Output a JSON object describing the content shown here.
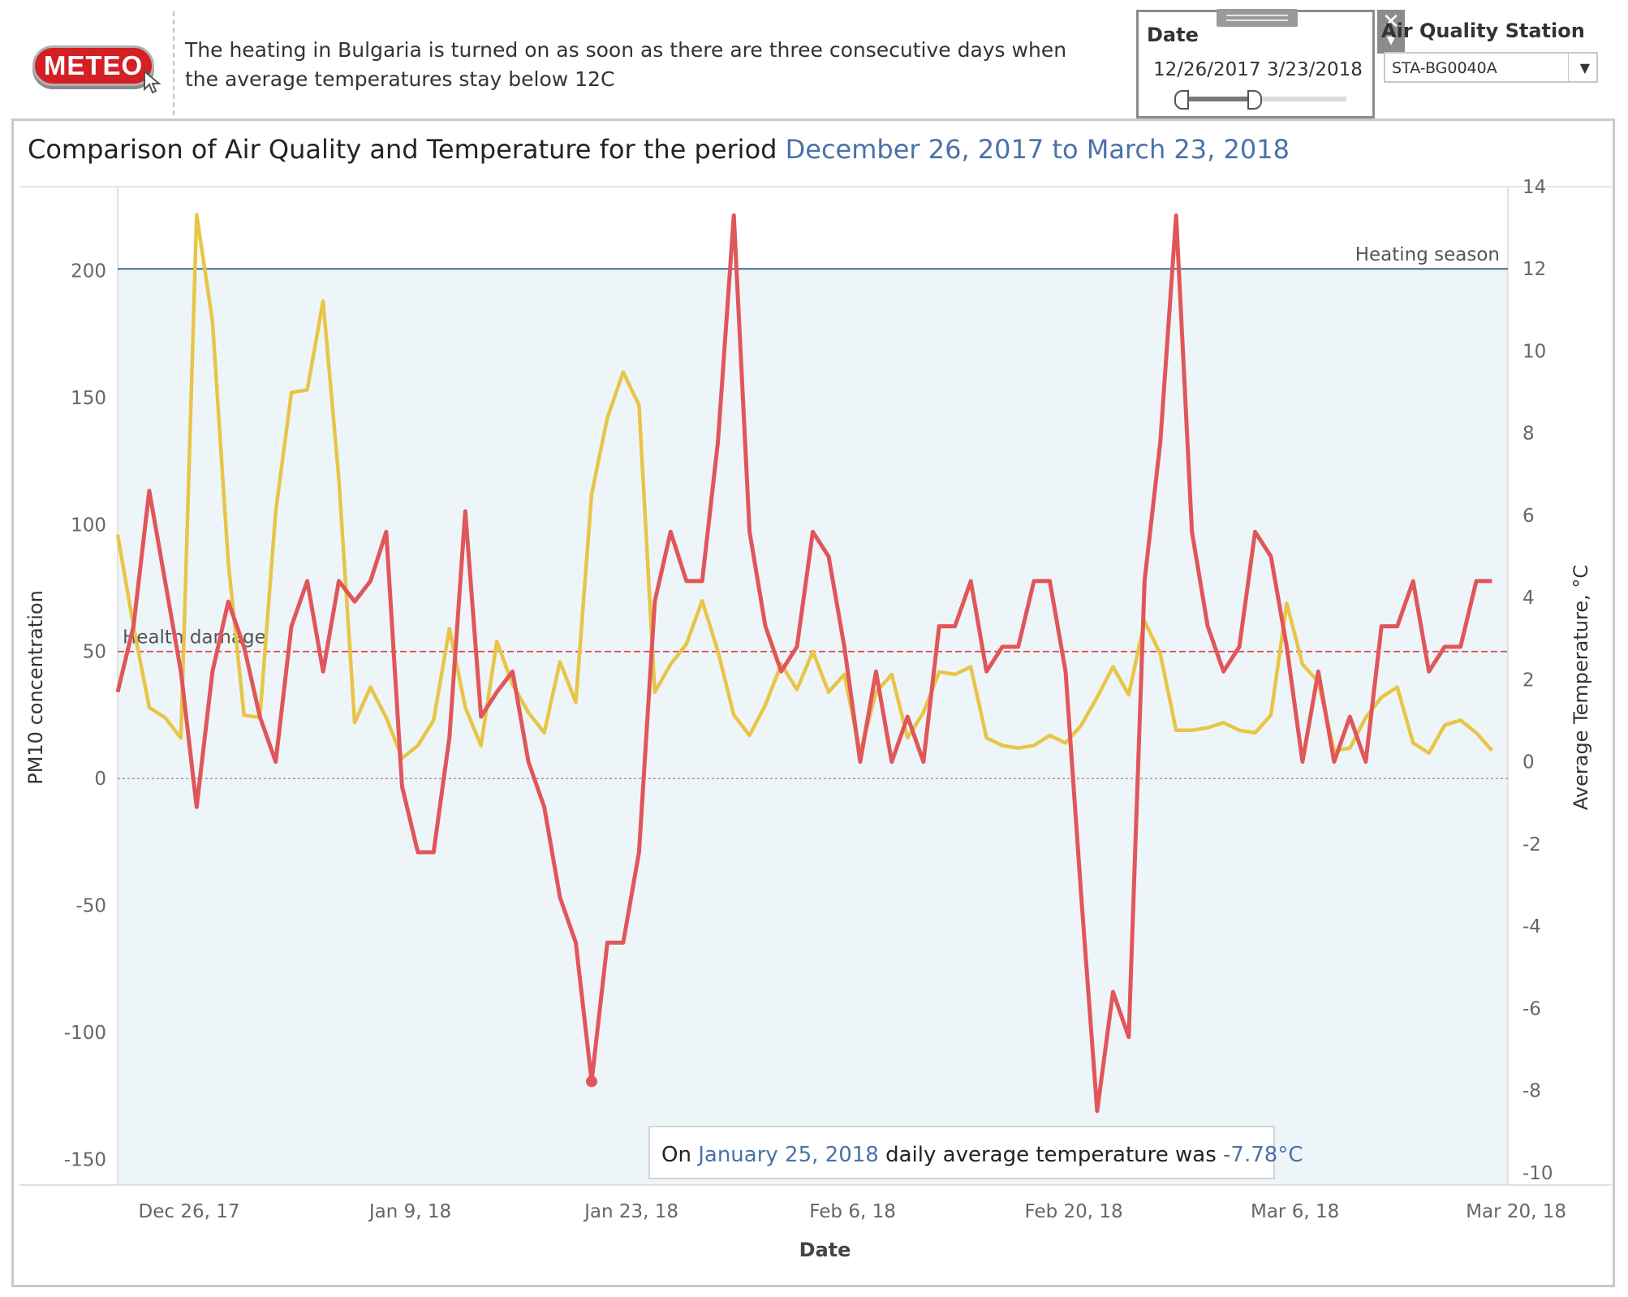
{
  "header": {
    "logo_text": "METEO",
    "intro_text": "The heating in Bulgaria is turned on as soon as there are three consecutive days when the average temperatures stay below 12C"
  },
  "date_filter": {
    "title": "Date",
    "start": "12/26/2017",
    "end": "3/23/2018"
  },
  "station_filter": {
    "title": "Air Quality Station",
    "value": "STA-BG0040A"
  },
  "chart_title": {
    "prefix": "Comparison of Air Quality and Temperature for the period ",
    "period": "December 26, 2017 to March 23, 2018"
  },
  "tooltip": {
    "prefix": "On ",
    "date": "January 25, 2018",
    "middle": " daily average temperature was ",
    "value": "-7.78°C"
  },
  "colors": {
    "pm10": "#e8c547",
    "temperature": "#e05659",
    "plot_background": "#eef5f9",
    "heating_line": "#3e6b86",
    "health_line": "#d94b4b",
    "accent_text": "#4a72a8"
  },
  "chart_data": {
    "type": "line",
    "xlabel": "Date",
    "ylabel_left": "PM10 concentration",
    "ylabel_right": "Average Temperature, °C",
    "x_ticks": [
      "Dec 26, 17",
      "Jan 9, 18",
      "Jan 23, 18",
      "Feb 6, 18",
      "Feb 20, 18",
      "Mar 6, 18",
      "Mar 20, 18"
    ],
    "y_left_ticks": [
      "200",
      "150",
      "100",
      "50",
      "0",
      "-50",
      "-100",
      "-150"
    ],
    "y_right_ticks": [
      "14",
      "12",
      "10",
      "8",
      "6",
      "4",
      "2",
      "0",
      "-2",
      "-4",
      "-6",
      "-8",
      "-10"
    ],
    "ylim_left": [
      -160,
      233
    ],
    "ylim_right": [
      -10.3,
      14.0
    ],
    "x_start": "2017-12-26",
    "x_end": "2018-03-24",
    "reference_lines": [
      {
        "label": "Heating season",
        "axis": "right",
        "value": 12
      },
      {
        "label": "Health damage",
        "axis": "left",
        "value": 50
      }
    ],
    "series": [
      {
        "name": "PM10",
        "axis": "left",
        "x": [
          "2017-12-26",
          "2017-12-27",
          "2017-12-28",
          "2017-12-29",
          "2017-12-30",
          "2017-12-31",
          "2018-01-01",
          "2018-01-02",
          "2018-01-03",
          "2018-01-04",
          "2018-01-05",
          "2018-01-06",
          "2018-01-07",
          "2018-01-08",
          "2018-01-09",
          "2018-01-10",
          "2018-01-11",
          "2018-01-12",
          "2018-01-13",
          "2018-01-14",
          "2018-01-15",
          "2018-01-16",
          "2018-01-17",
          "2018-01-18",
          "2018-01-19",
          "2018-01-20",
          "2018-01-21",
          "2018-01-22",
          "2018-01-23",
          "2018-01-24",
          "2018-01-25",
          "2018-01-26",
          "2018-01-27",
          "2018-01-28",
          "2018-01-29",
          "2018-01-30",
          "2018-01-31",
          "2018-02-01",
          "2018-02-02",
          "2018-02-03",
          "2018-02-04",
          "2018-02-05",
          "2018-02-06",
          "2018-02-07",
          "2018-02-08",
          "2018-02-09",
          "2018-02-10",
          "2018-02-11",
          "2018-02-12",
          "2018-02-13",
          "2018-02-14",
          "2018-02-15",
          "2018-02-16",
          "2018-02-17",
          "2018-02-18",
          "2018-02-19",
          "2018-02-20",
          "2018-02-21",
          "2018-02-22",
          "2018-02-23",
          "2018-02-24",
          "2018-02-25",
          "2018-02-26",
          "2018-02-27",
          "2018-02-28",
          "2018-03-01",
          "2018-03-02",
          "2018-03-03",
          "2018-03-04",
          "2018-03-05",
          "2018-03-06",
          "2018-03-07",
          "2018-03-08",
          "2018-03-09",
          "2018-03-10",
          "2018-03-11",
          "2018-03-12",
          "2018-03-13",
          "2018-03-14",
          "2018-03-15",
          "2018-03-16",
          "2018-03-17",
          "2018-03-18",
          "2018-03-19",
          "2018-03-20",
          "2018-03-21",
          "2018-03-22",
          "2018-03-23"
        ],
        "values": [
          96,
          60,
          28,
          24,
          16,
          222,
          180,
          85,
          25,
          24,
          105,
          152,
          153,
          188,
          118,
          22,
          36,
          24,
          8,
          13,
          23,
          59,
          28,
          13,
          54,
          37,
          26,
          18,
          46,
          30,
          112,
          142,
          160,
          147,
          34,
          45,
          53,
          70,
          50,
          25,
          17,
          29,
          45,
          35,
          50,
          34,
          41,
          10,
          34,
          41,
          16,
          26,
          42,
          41,
          44,
          16,
          13,
          12,
          13,
          17,
          14,
          21,
          32,
          44,
          33,
          62,
          49,
          19,
          19,
          20,
          22,
          19,
          18,
          25,
          69,
          45,
          38,
          11,
          12,
          24,
          32,
          36,
          14,
          10,
          21,
          23,
          18,
          11
        ]
      },
      {
        "name": "Temperature",
        "axis": "right",
        "x": [
          "2017-12-26",
          "2017-12-27",
          "2017-12-28",
          "2017-12-29",
          "2017-12-30",
          "2017-12-31",
          "2018-01-01",
          "2018-01-02",
          "2018-01-03",
          "2018-01-04",
          "2018-01-05",
          "2018-01-06",
          "2018-01-07",
          "2018-01-08",
          "2018-01-09",
          "2018-01-10",
          "2018-01-11",
          "2018-01-12",
          "2018-01-13",
          "2018-01-14",
          "2018-01-15",
          "2018-01-16",
          "2018-01-17",
          "2018-01-18",
          "2018-01-19",
          "2018-01-20",
          "2018-01-21",
          "2018-01-22",
          "2018-01-23",
          "2018-01-24",
          "2018-01-25",
          "2018-01-26",
          "2018-01-27",
          "2018-01-28",
          "2018-01-29",
          "2018-01-30",
          "2018-01-31",
          "2018-02-01",
          "2018-02-02",
          "2018-02-03",
          "2018-02-04",
          "2018-02-05",
          "2018-02-06",
          "2018-02-07",
          "2018-02-08",
          "2018-02-09",
          "2018-02-10",
          "2018-02-11",
          "2018-02-12",
          "2018-02-13",
          "2018-02-14",
          "2018-02-15",
          "2018-02-16",
          "2018-02-17",
          "2018-02-18",
          "2018-02-19",
          "2018-02-20",
          "2018-02-21",
          "2018-02-22",
          "2018-02-23",
          "2018-02-24",
          "2018-02-25",
          "2018-02-26",
          "2018-02-27",
          "2018-02-28",
          "2018-03-01",
          "2018-03-02",
          "2018-03-03",
          "2018-03-04",
          "2018-03-05",
          "2018-03-06",
          "2018-03-07",
          "2018-03-08",
          "2018-03-09",
          "2018-03-10",
          "2018-03-11",
          "2018-03-12",
          "2018-03-13",
          "2018-03-14",
          "2018-03-15",
          "2018-03-16",
          "2018-03-17",
          "2018-03-18",
          "2018-03-19",
          "2018-03-20",
          "2018-03-21",
          "2018-03-22",
          "2018-03-23"
        ],
        "values": [
          1.7,
          3.3,
          6.6,
          4.4,
          2.2,
          -1.1,
          2.2,
          3.9,
          2.8,
          1.1,
          0,
          3.3,
          4.4,
          2.2,
          4.4,
          3.9,
          4.4,
          5.6,
          -0.6,
          -2.2,
          -2.2,
          0.6,
          6.1,
          1.1,
          1.7,
          2.2,
          0,
          -1.1,
          -3.3,
          -4.4,
          -7.78,
          -4.4,
          -4.4,
          -2.2,
          3.9,
          5.6,
          4.4,
          4.4,
          7.8,
          13.3,
          5.6,
          3.3,
          2.2,
          2.8,
          5.6,
          5.0,
          2.8,
          0,
          2.2,
          0,
          1.1,
          0,
          3.3,
          3.3,
          4.4,
          2.2,
          2.8,
          2.8,
          4.4,
          4.4,
          2.2,
          -3.3,
          -8.5,
          -5.6,
          -6.7,
          4.4,
          7.8,
          13.3,
          5.6,
          3.3,
          2.2,
          2.8,
          5.6,
          5.0,
          2.8,
          0,
          2.2,
          0,
          1.1,
          0,
          3.3,
          3.3,
          4.4,
          2.2,
          2.8,
          2.8,
          4.4,
          4.4
        ]
      }
    ],
    "highlight": {
      "series": "Temperature",
      "x": "2018-01-25",
      "y": -7.78
    }
  }
}
